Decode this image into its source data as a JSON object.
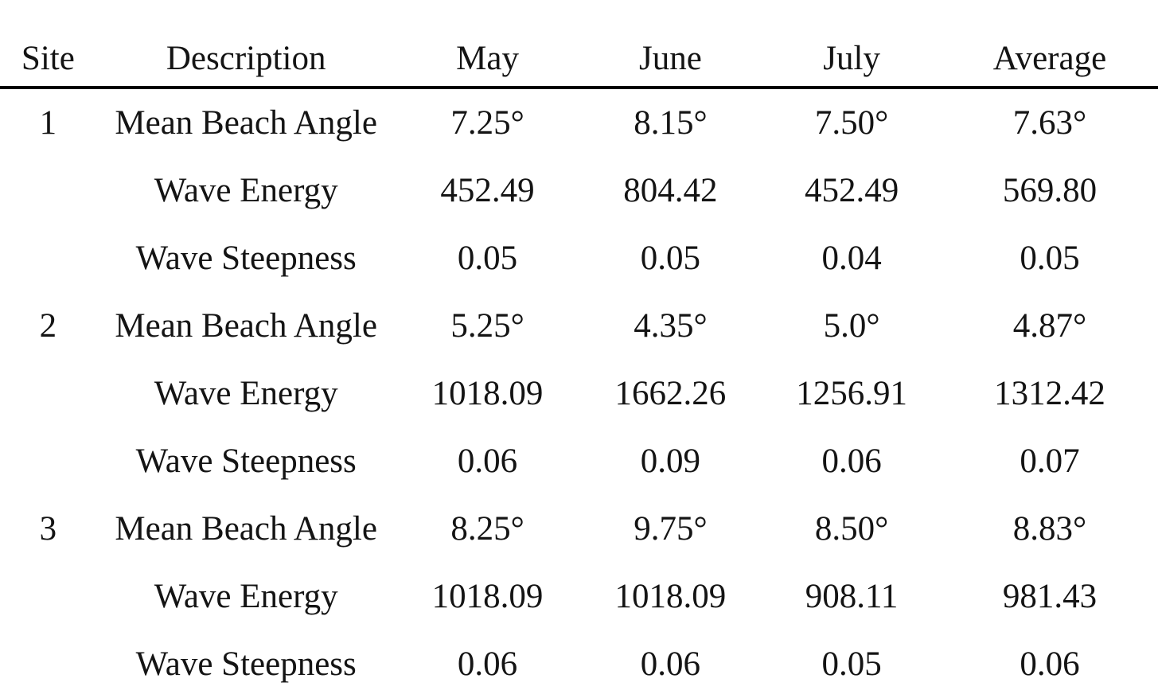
{
  "table": {
    "columns": [
      "Site",
      "Description",
      "May",
      "June",
      "July",
      "Average"
    ],
    "rows": [
      [
        "1",
        "Mean Beach Angle",
        "7.25°",
        "8.15°",
        "7.50°",
        "7.63°"
      ],
      [
        "",
        "Wave Energy",
        "452.49",
        "804.42",
        "452.49",
        "569.80"
      ],
      [
        "",
        "Wave Steepness",
        "0.05",
        "0.05",
        "0.04",
        "0.05"
      ],
      [
        "2",
        "Mean Beach Angle",
        "5.25°",
        "4.35°",
        "5.0°",
        "4.87°"
      ],
      [
        "",
        "Wave Energy",
        "1018.09",
        "1662.26",
        "1256.91",
        "1312.42"
      ],
      [
        "",
        "Wave Steepness",
        "0.06",
        "0.09",
        "0.06",
        "0.07"
      ],
      [
        "3",
        "Mean Beach Angle",
        "8.25°",
        "9.75°",
        "8.50°",
        "8.83°"
      ],
      [
        "",
        "Wave Energy",
        "1018.09",
        "1018.09",
        "908.11",
        "981.43"
      ],
      [
        "",
        "Wave Steepness",
        "0.06",
        "0.06",
        "0.05",
        "0.06"
      ]
    ]
  },
  "colors": {
    "text": "#141414",
    "rule": "#000000",
    "background": "#ffffff"
  }
}
